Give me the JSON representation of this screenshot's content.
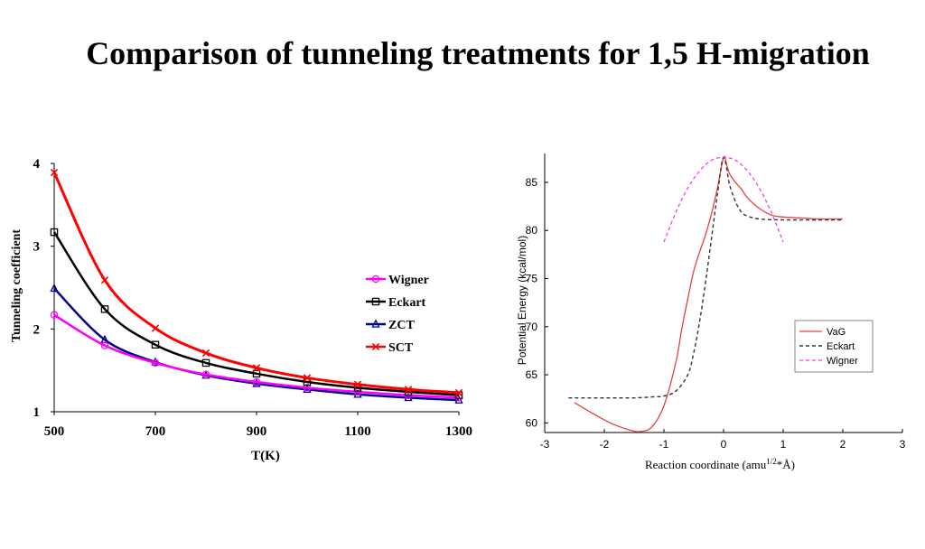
{
  "slide": {
    "title": "Comparison of tunneling treatments for 1,5 H-migration"
  },
  "colors": {
    "wigner": "#ff00ff",
    "eckart": "#000000",
    "zct": "#00008b",
    "sct": "#ff0000",
    "vag": "#e8403c",
    "eckart_right": "#333333",
    "wigner_right": "#ee44ee"
  },
  "chart_data": [
    {
      "type": "line",
      "title": "",
      "xlabel": "T(K)",
      "ylabel": "Tunneling coefficient",
      "xlim": [
        500,
        1300
      ],
      "ylim": [
        1,
        4
      ],
      "xticks": [
        "500",
        "700",
        "900",
        "1100",
        "1300"
      ],
      "yticks": [
        "1",
        "2",
        "3",
        "4"
      ],
      "legend_position": "right",
      "x": [
        500,
        600,
        700,
        800,
        900,
        1000,
        1100,
        1200,
        1300
      ],
      "series": [
        {
          "name": "Wigner",
          "marker": "circle",
          "values": [
            2.17,
            1.8,
            1.59,
            1.45,
            1.36,
            1.29,
            1.24,
            1.2,
            1.17
          ]
        },
        {
          "name": "Eckart",
          "marker": "square",
          "values": [
            3.17,
            2.24,
            1.81,
            1.59,
            1.46,
            1.36,
            1.29,
            1.24,
            1.2
          ]
        },
        {
          "name": "ZCT",
          "marker": "triangle",
          "values": [
            2.49,
            1.87,
            1.6,
            1.44,
            1.34,
            1.27,
            1.21,
            1.17,
            1.14
          ]
        },
        {
          "name": "SCT",
          "marker": "x",
          "values": [
            3.89,
            2.59,
            2.01,
            1.71,
            1.53,
            1.41,
            1.33,
            1.27,
            1.23
          ]
        }
      ]
    },
    {
      "type": "line",
      "title": "",
      "xlabel_main": "Reaction coordinate (amu",
      "xlabel_sup": "1/2",
      "xlabel_tail": "*Å)",
      "ylabel": "Potential Energy (kcal/mol)",
      "xlim": [
        -3,
        3
      ],
      "ylim": [
        59,
        88
      ],
      "xticks": [
        "-3",
        "-2",
        "-1",
        "0",
        "1",
        "2",
        "3"
      ],
      "yticks": [
        "60",
        "65",
        "70",
        "75",
        "80",
        "85"
      ],
      "legend_position": "lower-right",
      "series": [
        {
          "name": "VaG",
          "style": "solid",
          "points": [
            [
              -2.5,
              62.1
            ],
            [
              -2.2,
              61.0
            ],
            [
              -1.9,
              60.0
            ],
            [
              -1.6,
              59.3
            ],
            [
              -1.4,
              59.1
            ],
            [
              -1.2,
              59.6
            ],
            [
              -1.0,
              61.8
            ],
            [
              -0.8,
              66.3
            ],
            [
              -0.7,
              69.8
            ],
            [
              -0.6,
              72.9
            ],
            [
              -0.5,
              75.8
            ],
            [
              -0.4,
              77.8
            ],
            [
              -0.3,
              79.6
            ],
            [
              -0.2,
              81.8
            ],
            [
              -0.1,
              84.5
            ],
            [
              0.0,
              87.6
            ],
            [
              0.05,
              86.9
            ],
            [
              0.1,
              85.9
            ],
            [
              0.2,
              85.0
            ],
            [
              0.3,
              84.3
            ],
            [
              0.4,
              83.4
            ],
            [
              0.6,
              82.3
            ],
            [
              0.8,
              81.6
            ],
            [
              1.0,
              81.4
            ],
            [
              1.3,
              81.3
            ],
            [
              1.6,
              81.2
            ],
            [
              2.0,
              81.2
            ]
          ]
        },
        {
          "name": "Eckart",
          "style": "dashed",
          "points": [
            [
              -2.6,
              62.6
            ],
            [
              -2.0,
              62.6
            ],
            [
              -1.5,
              62.6
            ],
            [
              -1.2,
              62.7
            ],
            [
              -1.0,
              62.8
            ],
            [
              -0.8,
              63.3
            ],
            [
              -0.6,
              65.0
            ],
            [
              -0.5,
              67.3
            ],
            [
              -0.4,
              70.6
            ],
            [
              -0.3,
              74.7
            ],
            [
              -0.2,
              79.3
            ],
            [
              -0.1,
              83.9
            ],
            [
              0.0,
              87.6
            ],
            [
              0.1,
              84.8
            ],
            [
              0.2,
              83.0
            ],
            [
              0.3,
              81.9
            ],
            [
              0.4,
              81.5
            ],
            [
              0.6,
              81.2
            ],
            [
              1.0,
              81.1
            ],
            [
              2.0,
              81.1
            ]
          ]
        },
        {
          "name": "Wigner",
          "style": "dashed",
          "points": [
            [
              -1.0,
              78.8
            ],
            [
              -0.8,
              81.9
            ],
            [
              -0.6,
              84.4
            ],
            [
              -0.4,
              86.2
            ],
            [
              -0.2,
              87.3
            ],
            [
              0.0,
              87.6
            ],
            [
              0.2,
              87.3
            ],
            [
              0.4,
              86.2
            ],
            [
              0.6,
              84.4
            ],
            [
              0.8,
              81.9
            ],
            [
              1.0,
              78.8
            ]
          ]
        }
      ]
    }
  ]
}
